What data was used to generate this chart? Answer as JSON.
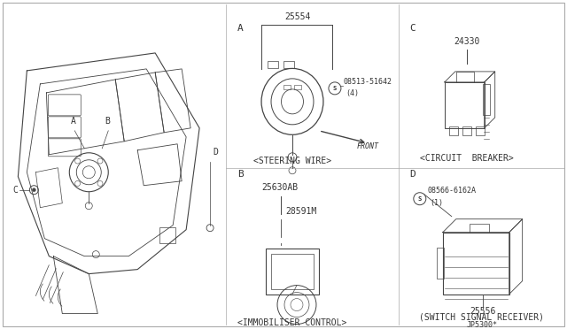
{
  "bg_color": "#ffffff",
  "line_color": "#444444",
  "text_color": "#333333",
  "fig_width": 6.4,
  "fig_height": 3.72,
  "dpi": 100,
  "part_A_number": "25554",
  "part_A_bolt": "08513-51642",
  "part_A_qty": "(4)",
  "part_A_caption": "<STEERING WIRE>",
  "part_A_front": "FRONT",
  "part_B_number": "25630AB",
  "part_B_sub": "28591M",
  "part_B_caption": "<IMMOBILISER CONTROL>",
  "part_C_number": "24330",
  "part_C_caption": "<CIRCUIT  BREAKER>",
  "part_D_bolt": "08566-6162A",
  "part_D_qty": "(1)",
  "part_D_number": "25556",
  "part_D_caption": "(SWITCH SIGNAL RECEIVER)",
  "part_D_footer": "JP5300*",
  "label_A": "A",
  "label_B": "B",
  "label_C": "C",
  "label_D": "D"
}
